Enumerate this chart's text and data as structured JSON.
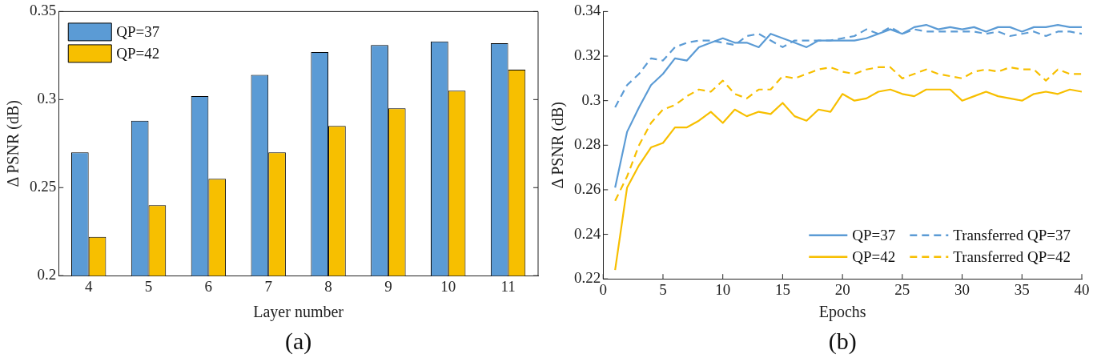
{
  "chart_data": [
    {
      "type": "bar",
      "xlabel": "Layer number",
      "ylabel": "Δ PSNR (dB)",
      "annotations": [
        "(a)"
      ],
      "categories": [
        "4",
        "5",
        "6",
        "7",
        "8",
        "9",
        "10",
        "11"
      ],
      "series": [
        {
          "name": "QP=37",
          "color": "#5b9bd5",
          "values": [
            0.27,
            0.288,
            0.302,
            0.314,
            0.327,
            0.331,
            0.333,
            0.332
          ]
        },
        {
          "name": "QP=42",
          "color": "#f7bf00",
          "values": [
            0.222,
            0.24,
            0.255,
            0.27,
            0.285,
            0.295,
            0.305,
            0.317
          ]
        }
      ],
      "ylim": [
        0.2,
        0.35
      ],
      "yticks": [
        0.2,
        0.25,
        0.3,
        0.35
      ],
      "grid": false,
      "legend": "top left"
    },
    {
      "type": "line",
      "xlabel": "Epochs",
      "ylabel": "Δ PSNR (dB)",
      "annotations": [
        "(b)"
      ],
      "x": [
        1,
        2,
        3,
        4,
        5,
        6,
        7,
        8,
        9,
        10,
        11,
        12,
        13,
        14,
        15,
        16,
        17,
        18,
        19,
        20,
        21,
        22,
        23,
        24,
        25,
        26,
        27,
        28,
        29,
        30,
        31,
        32,
        33,
        34,
        35,
        36,
        37,
        38,
        39,
        40
      ],
      "series": [
        {
          "name": "QP=37",
          "color": "#5b9bd5",
          "line_style": "solid",
          "values": [
            0.261,
            0.286,
            0.297,
            0.307,
            0.312,
            0.319,
            0.318,
            0.324,
            0.326,
            0.328,
            0.326,
            0.326,
            0.324,
            0.33,
            0.328,
            0.326,
            0.324,
            0.327,
            0.327,
            0.327,
            0.327,
            0.328,
            0.33,
            0.332,
            0.33,
            0.333,
            0.334,
            0.332,
            0.333,
            0.332,
            0.333,
            0.331,
            0.333,
            0.333,
            0.331,
            0.333,
            0.333,
            0.334,
            0.333,
            0.333
          ]
        },
        {
          "name": "QP=42",
          "color": "#f7bf00",
          "line_style": "solid",
          "values": [
            0.224,
            0.261,
            0.271,
            0.279,
            0.281,
            0.288,
            0.288,
            0.291,
            0.295,
            0.29,
            0.296,
            0.293,
            0.295,
            0.294,
            0.299,
            0.293,
            0.291,
            0.296,
            0.295,
            0.303,
            0.3,
            0.301,
            0.304,
            0.305,
            0.303,
            0.302,
            0.305,
            0.305,
            0.305,
            0.3,
            0.302,
            0.304,
            0.302,
            0.301,
            0.3,
            0.303,
            0.304,
            0.303,
            0.305,
            0.304
          ]
        },
        {
          "name": "Transferred QP=37",
          "color": "#5b9bd5",
          "line_style": "dashed",
          "values": [
            0.297,
            0.307,
            0.312,
            0.319,
            0.318,
            0.324,
            0.326,
            0.327,
            0.327,
            0.326,
            0.325,
            0.329,
            0.33,
            0.327,
            0.324,
            0.327,
            0.327,
            0.327,
            0.327,
            0.328,
            0.329,
            0.332,
            0.33,
            0.333,
            0.33,
            0.332,
            0.331,
            0.331,
            0.331,
            0.331,
            0.331,
            0.33,
            0.331,
            0.329,
            0.33,
            0.331,
            0.329,
            0.331,
            0.331,
            0.33
          ]
        },
        {
          "name": "Transferred QP=42",
          "color": "#f7bf00",
          "line_style": "dashed",
          "values": [
            0.255,
            0.266,
            0.28,
            0.29,
            0.296,
            0.298,
            0.302,
            0.305,
            0.304,
            0.309,
            0.303,
            0.301,
            0.305,
            0.305,
            0.311,
            0.31,
            0.312,
            0.314,
            0.315,
            0.313,
            0.312,
            0.314,
            0.315,
            0.315,
            0.31,
            0.312,
            0.314,
            0.312,
            0.311,
            0.31,
            0.313,
            0.314,
            0.313,
            0.315,
            0.314,
            0.314,
            0.309,
            0.314,
            0.312,
            0.312
          ]
        }
      ],
      "xlim": [
        0,
        40
      ],
      "xticks": [
        0,
        5,
        10,
        15,
        20,
        25,
        30,
        35,
        40
      ],
      "ylim": [
        0.22,
        0.34
      ],
      "yticks": [
        0.22,
        0.24,
        0.26,
        0.28,
        0.3,
        0.32,
        0.34
      ],
      "grid": false,
      "legend": "bottom right",
      "marker": "none"
    }
  ]
}
